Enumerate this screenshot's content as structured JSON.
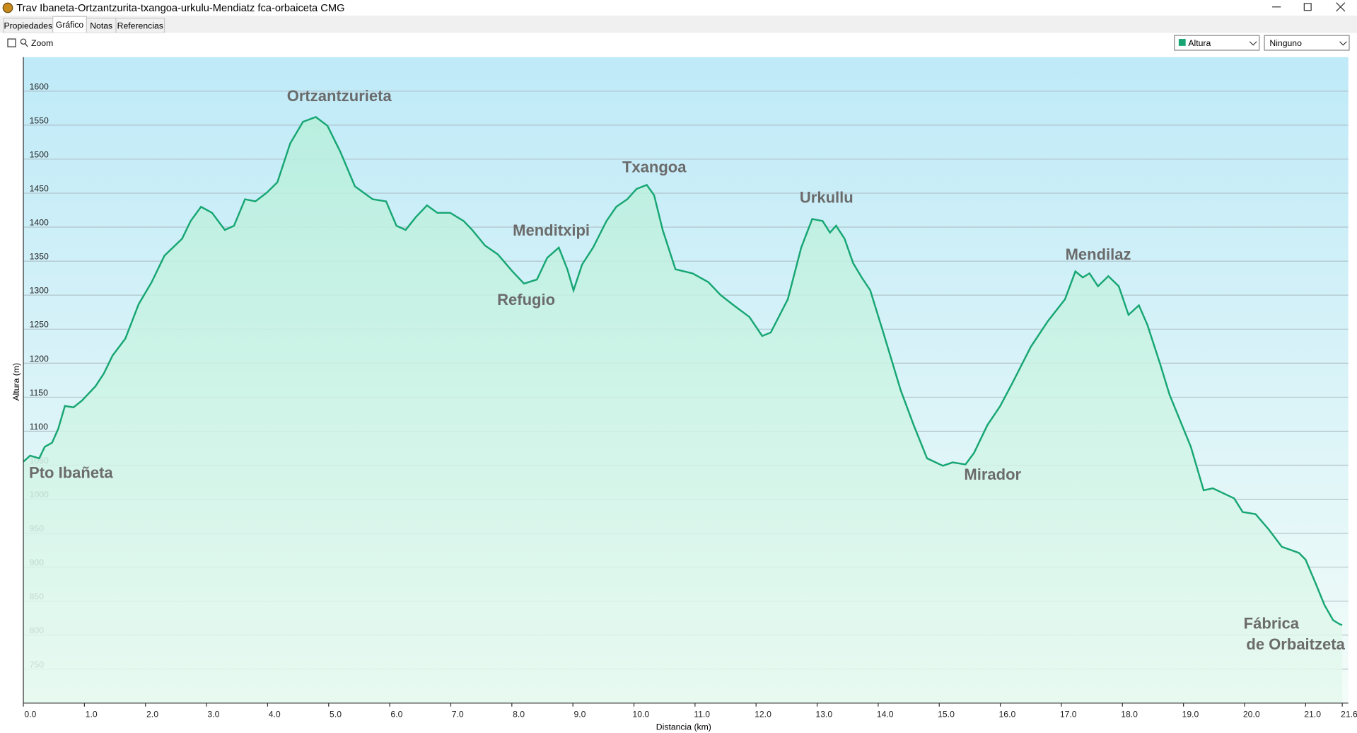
{
  "window": {
    "title": "Trav Ibaneta-Ortzantzurita-txangoa-urkulu-Mendiatz fca-orbaiceta CMG"
  },
  "tabs": [
    "Propiedades",
    "Gráfico",
    "Notas",
    "Referencias"
  ],
  "zoom_label": "Zoom",
  "dropdowns": [
    "Altura",
    "Ninguno"
  ],
  "chart_data": {
    "type": "line",
    "xlabel": "Distancia  (km)",
    "ylabel": "Altura (m)",
    "xlim": [
      0,
      21.7
    ],
    "ylim": [
      700,
      1650
    ],
    "xticks": [
      {
        "value": 0,
        "label": "0.0"
      },
      {
        "value": 1,
        "label": "1.0"
      },
      {
        "value": 2,
        "label": "2.0"
      },
      {
        "value": 3,
        "label": "3.0"
      },
      {
        "value": 4,
        "label": "4.0"
      },
      {
        "value": 5,
        "label": "5.0"
      },
      {
        "value": 6,
        "label": "6.0"
      },
      {
        "value": 7,
        "label": "7.0"
      },
      {
        "value": 8,
        "label": "8.0"
      },
      {
        "value": 9,
        "label": "9.0"
      },
      {
        "value": 10,
        "label": "10.0"
      },
      {
        "value": 11,
        "label": "11.0"
      },
      {
        "value": 12,
        "label": "12.0"
      },
      {
        "value": 13,
        "label": "13.0"
      },
      {
        "value": 14,
        "label": "14.0"
      },
      {
        "value": 15,
        "label": "15.0"
      },
      {
        "value": 16,
        "label": "16.0"
      },
      {
        "value": 17,
        "label": "17.0"
      },
      {
        "value": 18,
        "label": "18.0"
      },
      {
        "value": 19,
        "label": "19.0"
      },
      {
        "value": 20,
        "label": "20.0"
      },
      {
        "value": 21,
        "label": "21.0"
      },
      21.6
    ],
    "yticks": [
      750,
      800,
      850,
      900,
      950,
      1000,
      1050,
      1100,
      1150,
      1200,
      1250,
      1300,
      1350,
      1400,
      1450,
      1500,
      1550,
      1600
    ],
    "grid": true,
    "annotations": [
      "Ortzantzurieta",
      "Txangoa",
      "Urkullu",
      "Menditxipi",
      "Refugio",
      "Mendilaz",
      "Pto Ibañeta",
      "Mirador",
      "Fábrica",
      "de Orbaitzeta"
    ],
    "series": [
      {
        "name": "Altura",
        "color": "#17a673",
        "x": [
          0,
          0.11,
          0.26,
          0.35,
          0.47,
          0.57,
          0.68,
          0.82,
          0.96,
          1.18,
          1.32,
          1.46,
          1.67,
          1.89,
          2.1,
          2.31,
          2.6,
          2.74,
          2.91,
          3.09,
          3.3,
          3.45,
          3.63,
          3.8,
          3.99,
          4.16,
          4.37,
          4.58,
          4.79,
          4.98,
          5.19,
          5.43,
          5.72,
          5.94,
          6.11,
          6.26,
          6.43,
          6.61,
          6.78,
          6.99,
          7.21,
          7.35,
          7.56,
          7.77,
          8.01,
          8.2,
          8.41,
          8.58,
          8.77,
          8.91,
          9.01,
          9.15,
          9.33,
          9.55,
          9.71,
          9.89,
          10.04,
          10.21,
          10.33,
          10.47,
          10.68,
          10.96,
          11.22,
          11.42,
          11.65,
          11.89,
          12.1,
          12.24,
          12.52,
          12.74,
          12.92,
          13.09,
          13.21,
          13.31,
          13.45,
          13.59,
          13.73,
          13.87,
          14.09,
          14.37,
          14.58,
          14.8,
          15.06,
          15.22,
          15.43,
          15.57,
          15.79,
          16,
          16.21,
          16.5,
          16.78,
          17.06,
          17.23,
          17.35,
          17.46,
          17.6,
          17.77,
          17.94,
          18.1,
          18.27,
          18.41,
          18.62,
          18.77,
          19.12,
          19.33,
          19.48,
          19.69,
          19.83,
          19.97,
          20.18,
          20.4,
          20.61,
          20.89,
          21,
          21.16,
          21.31,
          21.45,
          21.56,
          21.6
        ],
        "values": [
          1055,
          1064,
          1060,
          1077,
          1083,
          1103,
          1137,
          1135,
          1145,
          1166,
          1185,
          1211,
          1236,
          1287,
          1319,
          1358,
          1383,
          1409,
          1430,
          1421,
          1396,
          1402,
          1441,
          1438,
          1451,
          1466,
          1523,
          1555,
          1562,
          1549,
          1511,
          1460,
          1441,
          1438,
          1402,
          1396,
          1415,
          1432,
          1421,
          1421,
          1409,
          1396,
          1373,
          1360,
          1335,
          1317,
          1323,
          1355,
          1370,
          1338,
          1307,
          1345,
          1370,
          1409,
          1430,
          1441,
          1456,
          1462,
          1447,
          1396,
          1338,
          1332,
          1319,
          1300,
          1284,
          1268,
          1240,
          1245,
          1294,
          1370,
          1412,
          1409,
          1392,
          1402,
          1383,
          1347,
          1326,
          1307,
          1243,
          1160,
          1109,
          1060,
          1049,
          1054,
          1051,
          1068,
          1109,
          1137,
          1173,
          1224,
          1262,
          1294,
          1335,
          1326,
          1332,
          1313,
          1328,
          1313,
          1271,
          1285,
          1256,
          1198,
          1154,
          1077,
          1013,
          1016,
          1007,
          1001,
          981,
          978,
          955,
          930,
          921,
          911,
          877,
          844,
          822,
          816,
          815
        ]
      }
    ]
  }
}
